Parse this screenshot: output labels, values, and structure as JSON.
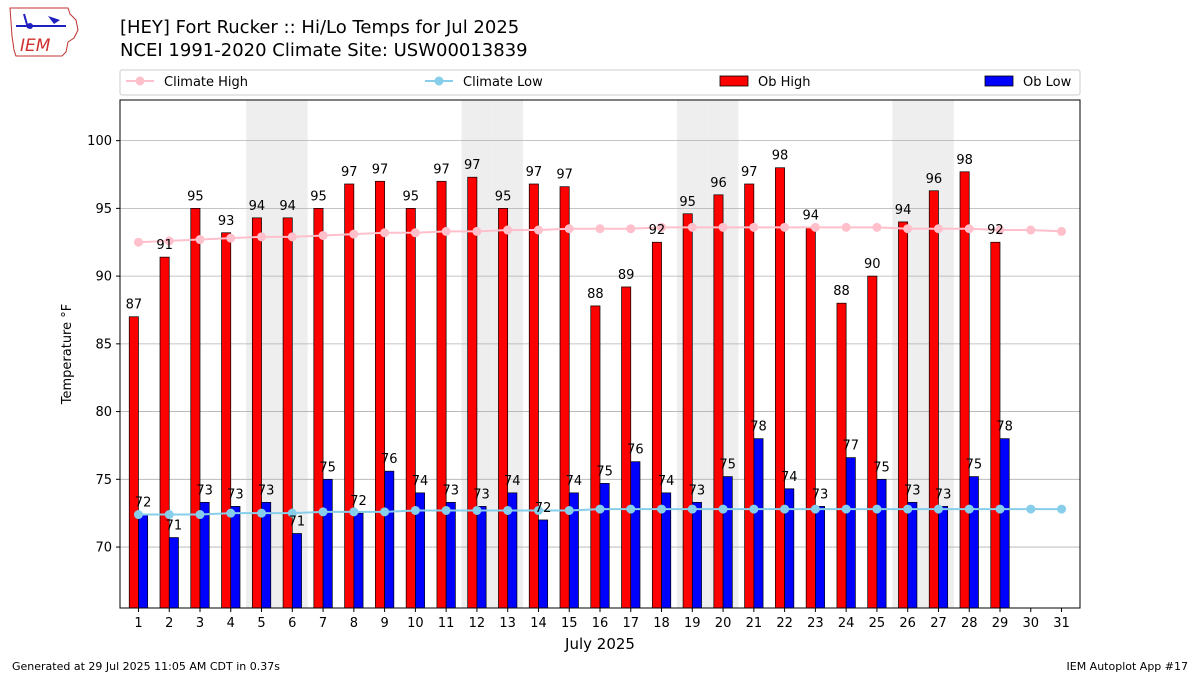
{
  "header": {
    "title_line1": "[HEY] Fort Rucker :: Hi/Lo Temps for Jul 2025",
    "title_line2": "NCEI 1991-2020 Climate Site: USW00013839",
    "logo_text": "IEM"
  },
  "footer": {
    "left": "Generated at 29 Jul 2025 11:05 AM CDT in 0.37s",
    "right": "IEM Autoplot App #17"
  },
  "colors": {
    "ob_high": "#ff0000",
    "ob_low": "#0000ff",
    "climate_high": "#ffc0cb",
    "climate_low": "#87ceeb",
    "weekend_shade": "#eeeeee",
    "grid": "#b0b0b0"
  },
  "chart_data": {
    "type": "bar",
    "xlabel": "July 2025",
    "ylabel": "Temperature °F",
    "ylim": [
      65.5,
      103
    ],
    "yticks": [
      70,
      75,
      80,
      85,
      90,
      95,
      100
    ],
    "grid": "horizontal",
    "legend_position": "top",
    "legend": [
      "Climate High",
      "Climate Low",
      "Ob High",
      "Ob Low"
    ],
    "days": [
      1,
      2,
      3,
      4,
      5,
      6,
      7,
      8,
      9,
      10,
      11,
      12,
      13,
      14,
      15,
      16,
      17,
      18,
      19,
      20,
      21,
      22,
      23,
      24,
      25,
      26,
      27,
      28,
      29,
      30,
      31
    ],
    "weekend_days": [
      5,
      6,
      12,
      13,
      19,
      20,
      26,
      27
    ],
    "series": [
      {
        "name": "Ob High",
        "kind": "bar",
        "values": [
          87,
          91.4,
          95,
          93.2,
          94.3,
          94.3,
          95,
          96.8,
          97,
          95,
          97,
          97.3,
          95,
          96.8,
          96.6,
          87.8,
          89.2,
          92.5,
          94.6,
          96,
          96.8,
          98,
          93.6,
          88,
          90,
          94,
          96.3,
          97.7,
          92.5
        ],
        "labels": [
          "87",
          "91",
          "95",
          "93",
          "94",
          "94",
          "95",
          "97",
          "97",
          "95",
          "97",
          "97",
          "95",
          "97",
          "97",
          "88",
          "89",
          "92",
          "95",
          "96",
          "97",
          "98",
          "94",
          "88",
          "90",
          "94",
          "96",
          "98",
          "92"
        ]
      },
      {
        "name": "Ob Low",
        "kind": "bar",
        "values": [
          72.4,
          70.7,
          73.3,
          73,
          73.3,
          71,
          75,
          72.5,
          75.6,
          74,
          73.3,
          73,
          74,
          72,
          74,
          74.7,
          76.3,
          74,
          73.3,
          75.2,
          78,
          74.3,
          73,
          76.6,
          75,
          73.3,
          73,
          75.2,
          78
        ],
        "labels": [
          "72",
          "71",
          "73",
          "73",
          "73",
          "71",
          "75",
          "72",
          "76",
          "74",
          "73",
          "73",
          "74",
          "72",
          "74",
          "75",
          "76",
          "74",
          "73",
          "75",
          "78",
          "74",
          "73",
          "77",
          "75",
          "73",
          "73",
          "75",
          "78"
        ]
      },
      {
        "name": "Climate High",
        "kind": "line",
        "values": [
          92.5,
          92.6,
          92.7,
          92.8,
          92.9,
          92.9,
          93,
          93.1,
          93.2,
          93.2,
          93.3,
          93.3,
          93.4,
          93.4,
          93.5,
          93.5,
          93.5,
          93.6,
          93.6,
          93.6,
          93.6,
          93.6,
          93.6,
          93.6,
          93.6,
          93.5,
          93.5,
          93.5,
          93.4,
          93.4,
          93.3
        ]
      },
      {
        "name": "Climate Low",
        "kind": "line",
        "values": [
          72.4,
          72.4,
          72.4,
          72.5,
          72.5,
          72.5,
          72.6,
          72.6,
          72.6,
          72.7,
          72.7,
          72.7,
          72.7,
          72.7,
          72.7,
          72.8,
          72.8,
          72.8,
          72.8,
          72.8,
          72.8,
          72.8,
          72.8,
          72.8,
          72.8,
          72.8,
          72.8,
          72.8,
          72.8,
          72.8,
          72.8
        ]
      }
    ]
  }
}
